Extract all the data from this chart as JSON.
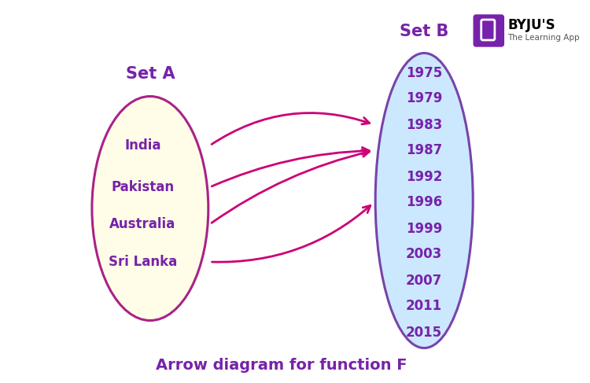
{
  "set_a_label": "Set A",
  "set_b_label": "Set B",
  "set_a_elements": [
    "India",
    "Pakistan",
    "Australia",
    "Sri Lanka"
  ],
  "set_b_elements": [
    "1975",
    "1979",
    "1983",
    "1987",
    "1992",
    "1996",
    "1999",
    "2003",
    "2007",
    "2011",
    "2015"
  ],
  "arrows": [
    {
      "from": "India",
      "to": "1983"
    },
    {
      "from": "Pakistan",
      "to": "1987"
    },
    {
      "from": "Australia",
      "to": "1987"
    },
    {
      "from": "Sri Lanka",
      "to": "1996"
    }
  ],
  "ellipse_a_color": "#fffde7",
  "ellipse_a_edge": "#aa2288",
  "ellipse_b_color": "#cce8ff",
  "ellipse_b_edge": "#7744aa",
  "label_color": "#7722aa",
  "arrow_color": "#cc0077",
  "text_color": "#7722aa",
  "caption": "Arrow diagram for function F",
  "bg_color": "#ffffff",
  "byju_logo_color": "#7722aa"
}
